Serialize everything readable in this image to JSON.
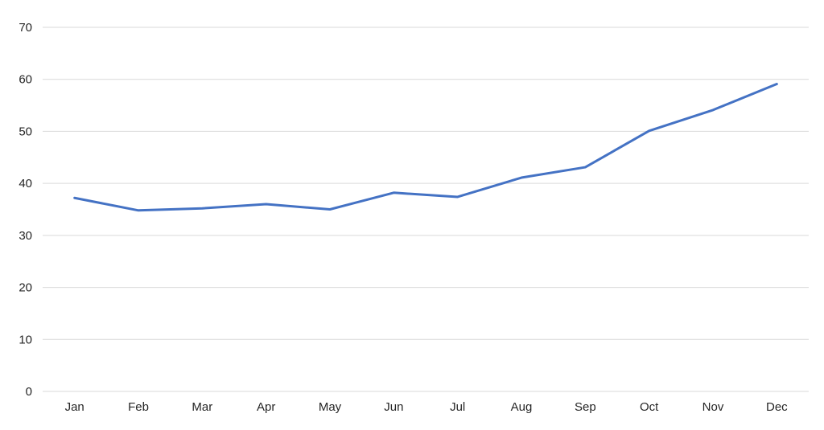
{
  "chart_data": {
    "type": "line",
    "categories": [
      "Jan",
      "Feb",
      "Mar",
      "Apr",
      "May",
      "Jun",
      "Jul",
      "Aug",
      "Sep",
      "Oct",
      "Nov",
      "Dec"
    ],
    "series": [
      {
        "values": [
          37.2,
          34.8,
          35.2,
          36.0,
          35.0,
          38.2,
          37.4,
          41.1,
          43.1,
          50.1,
          54.1,
          59.1
        ],
        "color": "#4472c4"
      }
    ],
    "ylim": [
      0,
      70
    ],
    "yticks": [
      0,
      10,
      20,
      30,
      40,
      50,
      60,
      70
    ],
    "grid": true,
    "legend": "none",
    "title": "",
    "xlabel": "",
    "ylabel": ""
  }
}
